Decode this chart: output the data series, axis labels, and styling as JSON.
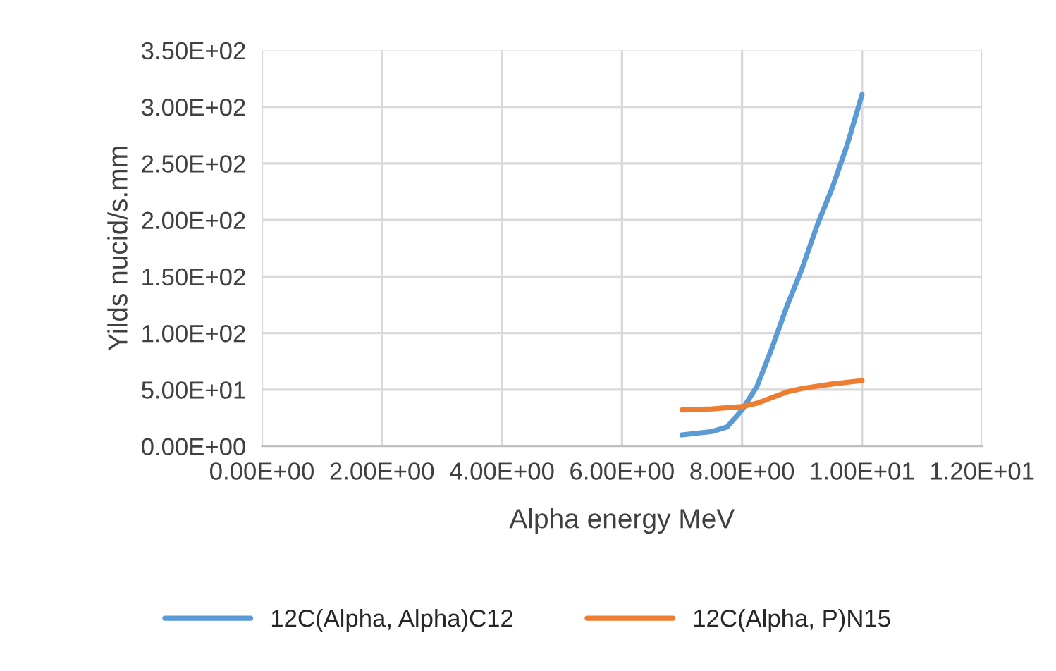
{
  "chart_data": {
    "type": "line",
    "xlabel": "Alpha energy MeV",
    "ylabel": "Yilds nucid/s.mm",
    "x": [
      7,
      7.5,
      7.75,
      8,
      8.25,
      8.5,
      8.75,
      9,
      9.25,
      9.5,
      9.75,
      10
    ],
    "series": [
      {
        "name": "12C(Alpha, Alpha)C12",
        "color": "#5b9bd5",
        "values": [
          10,
          13,
          17,
          32,
          53,
          87,
          124,
          157,
          195,
          228,
          266,
          311
        ]
      },
      {
        "name": "12C(Alpha, P)N15",
        "color": "#ed7d31",
        "x": [
          7,
          7.5,
          8,
          8.25,
          8.5,
          8.75,
          9,
          9.5,
          10
        ],
        "values": [
          32,
          33,
          35,
          38,
          43,
          48,
          51,
          55,
          58
        ]
      }
    ],
    "xlim": [
      0,
      12
    ],
    "ylim": [
      0,
      350
    ],
    "xticks": [
      {
        "value": 0,
        "label": "0.00E+00"
      },
      {
        "value": 2,
        "label": "2.00E+00"
      },
      {
        "value": 4,
        "label": "4.00E+00"
      },
      {
        "value": 6,
        "label": "6.00E+00"
      },
      {
        "value": 8,
        "label": "8.00E+00"
      },
      {
        "value": 10,
        "label": "1.00E+01"
      },
      {
        "value": 12,
        "label": "1.20E+01"
      }
    ],
    "yticks": [
      {
        "value": 0,
        "label": "0.00E+00"
      },
      {
        "value": 50,
        "label": "5.00E+01"
      },
      {
        "value": 100,
        "label": "1.00E+02"
      },
      {
        "value": 150,
        "label": "1.50E+02"
      },
      {
        "value": 200,
        "label": "2.00E+02"
      },
      {
        "value": 250,
        "label": "2.50E+02"
      },
      {
        "value": 300,
        "label": "3.00E+02"
      },
      {
        "value": 350,
        "label": "3.50E+02"
      }
    ],
    "grid": true,
    "legend": "bottom",
    "line_style": "solid",
    "marker": "none"
  }
}
